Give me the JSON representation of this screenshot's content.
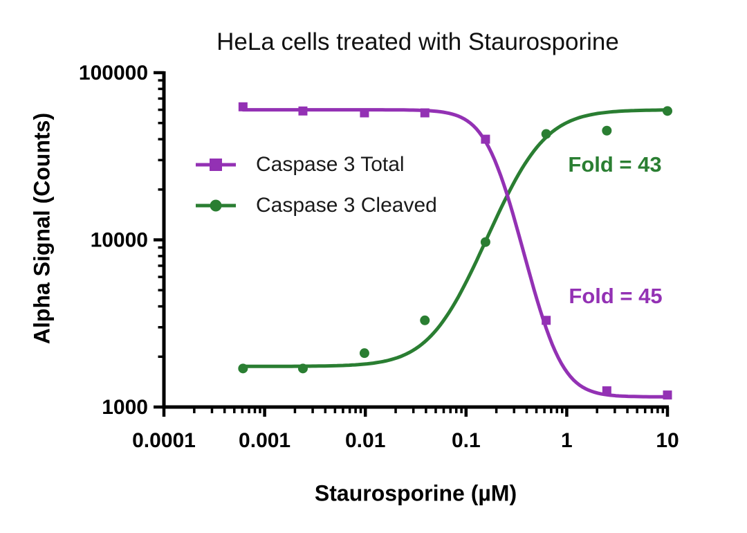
{
  "chart_data": {
    "type": "line",
    "title": "HeLa cells treated with Staurosporine",
    "xlabel": "Staurosporine (µM)",
    "ylabel": "Alpha Signal (Counts)",
    "xscale": "log",
    "yscale": "log",
    "xlim": [
      0.0001,
      10
    ],
    "ylim": [
      1000,
      100000
    ],
    "grid": false,
    "legend_position": "upper-left-inside",
    "x_axis": {
      "tick_labels": [
        "0.0001",
        "0.001",
        "0.01",
        "0.1",
        "1",
        "10"
      ],
      "tick_values": [
        0.0001,
        0.001,
        0.01,
        0.1,
        1,
        10
      ]
    },
    "y_axis": {
      "tick_labels": [
        "1000",
        "10000",
        "100000"
      ],
      "tick_values": [
        1000,
        10000,
        100000
      ]
    },
    "x": [
      0.00061,
      0.0024,
      0.0098,
      0.039,
      0.156,
      0.625,
      2.5,
      10
    ],
    "series": [
      {
        "name": "Caspase 3 Total",
        "color": "#9331B4",
        "marker": "square",
        "values": [
          62500,
          59000,
          57500,
          57500,
          40000,
          3300,
          1250,
          1180
        ],
        "fit": {
          "top": 60000,
          "bottom": 1150,
          "ec50": 0.19,
          "hill": 2.9
        }
      },
      {
        "name": "Caspase 3 Cleaved",
        "color": "#2A7E32",
        "marker": "circle",
        "values": [
          1700,
          1700,
          2100,
          3300,
          9700,
          43000,
          45000,
          59000
        ],
        "fit": {
          "top": 60000,
          "bottom": 1750,
          "ec50": 0.42,
          "hill": -1.85
        }
      }
    ],
    "annotations": [
      {
        "text": "Fold = 43",
        "color": "#2A7E32"
      },
      {
        "text": "Fold = 45",
        "color": "#9331B4"
      }
    ]
  }
}
